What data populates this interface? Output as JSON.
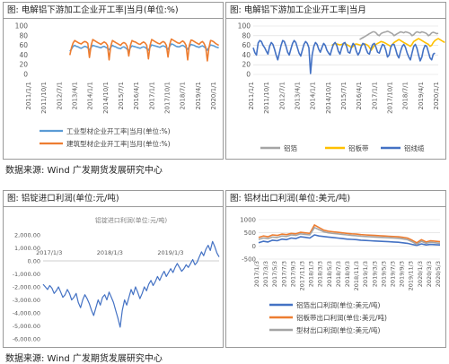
{
  "source_top": "数据来源: Wind 广发期货发展研究中心",
  "source_bottom": "数据来源: Wind 广发期货发展研究中心",
  "colors": {
    "blue": "#4472c4",
    "orange": "#ed7d31",
    "light_blue": "#5b9bd5",
    "gray": "#a5a5a5",
    "yellow": "#ffc000",
    "panel2_blue": "#4472c4"
  },
  "chart_data": [
    {
      "panel_title": "图: 电解铝下游加工企业开工率|当月(单位:%)",
      "type": "line",
      "yticks": [
        "0",
        "20",
        "40",
        "60",
        "80",
        "100"
      ],
      "ylim": [
        0,
        100
      ],
      "xticks": [
        "2011/1/1",
        "2011/10/1",
        "2012/7/1",
        "2013/4/1",
        "2014/1/1",
        "2014/10/1",
        "2015/7/1",
        "2016/4/1",
        "2017/1/1",
        "2017/10/1",
        "2018/7/1",
        "2019/4/1",
        "2020/1/1"
      ],
      "x_start": "2011-01",
      "x_end": "2020-06",
      "series": [
        {
          "name": "工业型材企业开工率|当月(单位:%)",
          "color": "#5b9bd5",
          "start": "2013-01",
          "values": [
            48,
            52,
            58,
            60,
            58,
            57,
            55,
            54,
            56,
            58,
            57,
            55,
            50,
            56,
            60,
            59,
            58,
            57,
            56,
            55,
            57,
            58,
            56,
            54,
            51,
            56,
            60,
            58,
            57,
            55,
            54,
            53,
            56,
            57,
            55,
            52,
            49,
            55,
            59,
            58,
            57,
            56,
            55,
            54,
            56,
            57,
            56,
            53,
            50,
            56,
            61,
            60,
            59,
            58,
            57,
            56,
            58,
            59,
            58,
            55,
            52,
            58,
            63,
            62,
            60,
            58,
            57,
            57,
            59,
            60,
            58,
            55,
            52,
            57,
            62,
            61,
            60,
            58,
            57,
            56,
            58,
            59,
            57,
            54,
            50,
            56,
            61,
            60,
            59,
            57,
            56,
            55
          ]
        },
        {
          "name": "建筑型材企业开工率|当月(单位:%)",
          "color": "#ed7d31",
          "start": "2013-01",
          "values": [
            40,
            55,
            65,
            70,
            68,
            66,
            64,
            63,
            66,
            68,
            67,
            64,
            35,
            60,
            72,
            70,
            68,
            66,
            64,
            62,
            65,
            67,
            65,
            60,
            30,
            58,
            70,
            68,
            66,
            64,
            62,
            60,
            64,
            66,
            64,
            58,
            38,
            60,
            70,
            68,
            67,
            65,
            63,
            62,
            65,
            67,
            65,
            60,
            32,
            60,
            72,
            70,
            68,
            66,
            64,
            63,
            66,
            68,
            66,
            60,
            36,
            62,
            73,
            71,
            69,
            67,
            65,
            64,
            67,
            69,
            66,
            60,
            30,
            60,
            71,
            70,
            68,
            66,
            64,
            62,
            66,
            68,
            64,
            56,
            28,
            55,
            70,
            69,
            67,
            64,
            62,
            60
          ]
        }
      ]
    },
    {
      "panel_title": "图: 电解铝下游加工企业开工率|当月",
      "type": "line",
      "yticks": [
        "0",
        "20",
        "40",
        "60",
        "80",
        "100"
      ],
      "ylim": [
        0,
        100
      ],
      "xticks": [
        "2011/1/1",
        "2011/10/1",
        "2012/7/1",
        "2013/4/1",
        "2014/1/1",
        "2014/10/1",
        "2015/7/1",
        "2016/4/1",
        "2017/1/1",
        "2017/10/1",
        "2018/7/1",
        "2019/4/1",
        "2020/1/1"
      ],
      "x_start": "2011-01",
      "x_end": "2020-06",
      "series": [
        {
          "name": "铝箔",
          "color": "#a5a5a5",
          "start": "2016-06",
          "values": [
            72,
            74,
            76,
            78,
            80,
            82,
            84,
            86,
            88,
            88,
            86,
            82,
            80,
            84,
            86,
            87,
            88,
            89,
            88,
            86,
            84,
            80,
            82,
            84,
            86,
            88,
            87,
            86,
            88,
            87,
            86,
            84,
            80,
            82,
            86,
            88,
            87,
            86,
            88,
            87,
            86,
            84,
            80,
            82,
            86,
            87,
            86,
            84,
            85
          ]
        },
        {
          "name": "铝板带",
          "color": "#ffc000",
          "start": "2015-01",
          "values": [
            60,
            62,
            64,
            63,
            62,
            61,
            62,
            63,
            64,
            62,
            60,
            58,
            55,
            58,
            62,
            63,
            62,
            61,
            60,
            62,
            63,
            62,
            60,
            56,
            50,
            55,
            60,
            62,
            64,
            66,
            68,
            67,
            66,
            64,
            62,
            60,
            58,
            62,
            66,
            68,
            70,
            72,
            70,
            68,
            66,
            64,
            62,
            60,
            58,
            62,
            68,
            70,
            72,
            74,
            72,
            70,
            68,
            66,
            64,
            62,
            58,
            60,
            66,
            70,
            72,
            74,
            72,
            70,
            68,
            66
          ]
        },
        {
          "name": "铝线缆",
          "color": "#4472c4",
          "start": "2011-01",
          "values": [
            55,
            45,
            40,
            65,
            70,
            68,
            60,
            55,
            48,
            42,
            58,
            66,
            62,
            52,
            40,
            30,
            45,
            60,
            70,
            68,
            58,
            46,
            40,
            52,
            64,
            70,
            66,
            55,
            44,
            38,
            50,
            62,
            68,
            64,
            55,
            2,
            40,
            58,
            66,
            62,
            52,
            46,
            56,
            64,
            60,
            50,
            44,
            40,
            52,
            62,
            66,
            60,
            48,
            42,
            54,
            64,
            66,
            58,
            46,
            44,
            56,
            64,
            60,
            48,
            40,
            46,
            58,
            64,
            62,
            52,
            44,
            42,
            54,
            62,
            64,
            56,
            46,
            44,
            54,
            62,
            60,
            50,
            36,
            40,
            56,
            62,
            62,
            52,
            40,
            34,
            48,
            58,
            62,
            56,
            44,
            36,
            30,
            44,
            58,
            62,
            54,
            40,
            28,
            36,
            52,
            60,
            58,
            46,
            34,
            30,
            42,
            44
          ]
        }
      ]
    },
    {
      "panel_title": "图: 铝锭进口利润(单位:元/吨)",
      "type": "line",
      "inner_title": "铝锭进口利润(单位:元/吨)",
      "yticks": [
        "2,000.00",
        "1,000.00",
        "0.00",
        "-1,000.00",
        "-2,000.00",
        "-3,000.00",
        "-4,000.00",
        "-5,000.00",
        "-6,000.00"
      ],
      "ylim": [
        -6000,
        2000
      ],
      "xticks": [
        "2017/1/3",
        "2018/1/3",
        "2019/1/3"
      ],
      "series": [
        {
          "name": "铝锭进口利润",
          "color": "#4472c4",
          "values": [
            -1800,
            -2000,
            -2200,
            -1900,
            -2100,
            -2500,
            -2300,
            -2000,
            -2400,
            -2800,
            -2600,
            -2200,
            -2500,
            -3000,
            -2800,
            -2500,
            -3200,
            -3600,
            -3000,
            -2600,
            -2900,
            -3300,
            -3800,
            -4200,
            -3600,
            -3000,
            -3400,
            -2800,
            -2600,
            -3000,
            -2400,
            -2800,
            -3200,
            -3800,
            -4400,
            -5100,
            -3800,
            -3000,
            -3400,
            -2800,
            -2200,
            -2600,
            -2000,
            -2400,
            -2900,
            -2500,
            -2000,
            -2300,
            -1800,
            -1500,
            -1900,
            -1600,
            -1200,
            -1500,
            -1100,
            -800,
            -1200,
            -900,
            -600,
            -900,
            -500,
            -200,
            -500,
            -800,
            -600,
            -300,
            -500,
            -200,
            100,
            -300,
            -100,
            300,
            700,
            400,
            900,
            1200,
            800,
            1500,
            1100,
            600,
            300
          ]
        }
      ]
    },
    {
      "panel_title": "图: 铝材出口利润(单位:美元/吨)",
      "type": "line",
      "yticks": [
        "1000",
        "500",
        "0",
        "-500"
      ],
      "ylim": [
        -500,
        1000
      ],
      "xticks": [
        "2017/1/3",
        "2017/3/3",
        "2017/5/3",
        "2017/7/3",
        "2017/9/3",
        "2017/11/3",
        "2018/1/3",
        "2018/3/3",
        "2018/5/3",
        "2018/7/3",
        "2018/9/3",
        "2018/11/3",
        "2019/1/3",
        "2019/3/3",
        "2019/5/3",
        "2019/7/3",
        "2019/9/3",
        "2019/11/3",
        "2020/1/3",
        "2020/3/3",
        "2020/5/3"
      ],
      "series": [
        {
          "name": "铝箔出口利润(单位:美元/吨)",
          "color": "#4472c4",
          "values": [
            120,
            180,
            150,
            220,
            200,
            260,
            240,
            300,
            280,
            350,
            330,
            300,
            420,
            380,
            360,
            340,
            320,
            300,
            280,
            260,
            250,
            240,
            220,
            210,
            200,
            190,
            180,
            170,
            160,
            150,
            140,
            120,
            100,
            60,
            20,
            80,
            40,
            60,
            50,
            40
          ]
        },
        {
          "name": "铝板带出口利润(单位:美元/吨)",
          "color": "#ed7d31",
          "values": [
            320,
            380,
            350,
            420,
            400,
            450,
            430,
            480,
            460,
            520,
            500,
            480,
            800,
            700,
            600,
            560,
            540,
            520,
            500,
            480,
            460,
            450,
            430,
            420,
            410,
            400,
            390,
            380,
            370,
            360,
            350,
            330,
            300,
            220,
            120,
            240,
            150,
            200,
            180,
            160
          ]
        },
        {
          "name": "型材出口利润(单位:美元/吨)",
          "color": "#a5a5a5",
          "values": [
            250,
            300,
            280,
            340,
            320,
            380,
            360,
            420,
            400,
            460,
            440,
            420,
            700,
            620,
            540,
            500,
            480,
            460,
            440,
            420,
            400,
            390,
            370,
            360,
            350,
            340,
            330,
            320,
            310,
            300,
            290,
            270,
            240,
            160,
            60,
            180,
            100,
            140,
            120,
            100
          ]
        }
      ]
    }
  ]
}
